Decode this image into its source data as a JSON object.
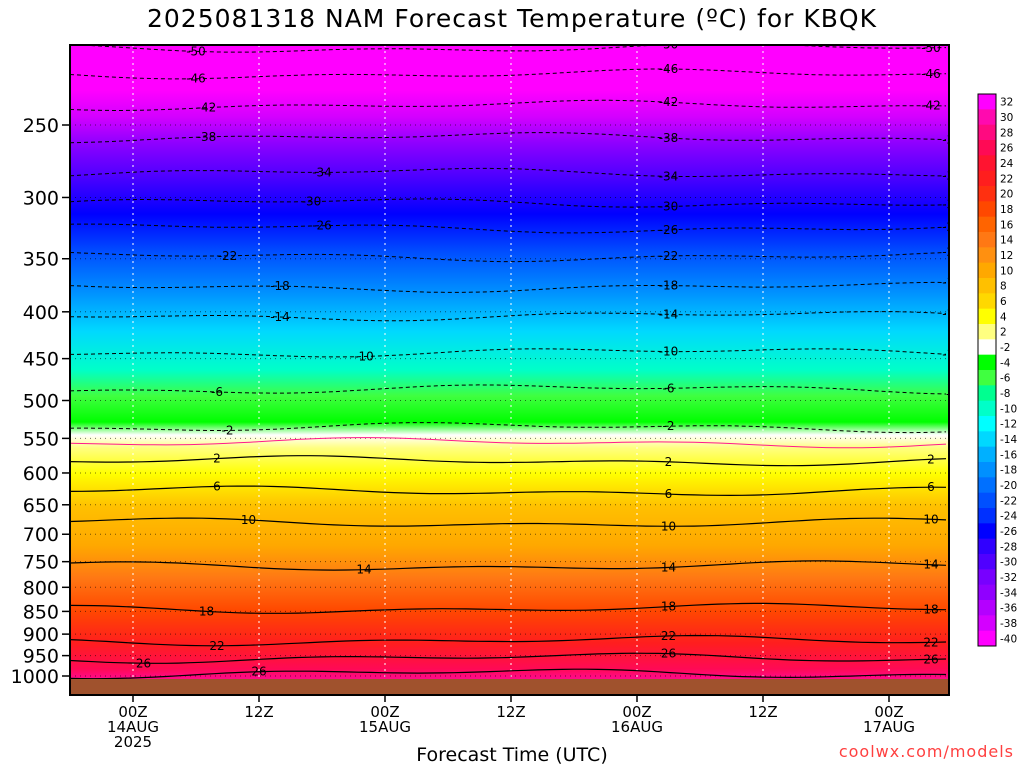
{
  "title": "2025081318 NAM Forecast Temperature (ºC) for KBQK",
  "watermark": "coolwx.com/models",
  "chart_data": {
    "type": "heatmap",
    "title": "2025081318 NAM Forecast Temperature (ºC) for KBQK",
    "xlabel": "Forecast Time (UTC)",
    "ylabel": "",
    "y_scale": "log-pressure",
    "y_ticks": [
      250,
      300,
      350,
      400,
      450,
      500,
      550,
      600,
      650,
      700,
      750,
      800,
      850,
      900,
      950,
      1000
    ],
    "ylim": [
      200,
      1000
    ],
    "x_ticks": [
      {
        "hour": 0,
        "lines": [
          "00Z",
          "14AUG",
          "2025"
        ]
      },
      {
        "hour": 12,
        "lines": [
          "12Z"
        ]
      },
      {
        "hour": 24,
        "lines": [
          "00Z",
          "15AUG"
        ]
      },
      {
        "hour": 36,
        "lines": [
          "12Z"
        ]
      },
      {
        "hour": 48,
        "lines": [
          "00Z",
          "16AUG"
        ]
      },
      {
        "hour": 60,
        "lines": [
          "12Z"
        ]
      },
      {
        "hour": 72,
        "lines": [
          "00Z",
          "17AUG"
        ]
      }
    ],
    "colorbar": {
      "labels": [
        32,
        30,
        28,
        26,
        24,
        22,
        20,
        18,
        16,
        14,
        12,
        10,
        8,
        6,
        4,
        2,
        -2,
        -4,
        -6,
        -8,
        -10,
        -12,
        -14,
        -16,
        -18,
        -20,
        -22,
        -24,
        -26,
        -28,
        -30,
        -32,
        -34,
        -36,
        -38,
        -40
      ],
      "colors": [
        "#ff00ff",
        "#ff0aaf",
        "#ff0a80",
        "#ff0a55",
        "#ff1430",
        "#ff1e1e",
        "#ff3010",
        "#ff4800",
        "#ff6400",
        "#ff7814",
        "#ff9010",
        "#ffa800",
        "#ffc000",
        "#ffd800",
        "#ffff00",
        "#ffff80",
        "#ffffff",
        "#00ff00",
        "#40ff40",
        "#00ff90",
        "#00ffc8",
        "#00ffff",
        "#00d8ff",
        "#00b0ff",
        "#0090ff",
        "#0070ff",
        "#0050ff",
        "#0030ff",
        "#0000ff",
        "#3000ff",
        "#5000ff",
        "#7800ff",
        "#9000ff",
        "#b400ff",
        "#d400ff",
        "#ff00ff"
      ]
    },
    "contours": [
      {
        "value": -50,
        "style": "dashed",
        "p": 206,
        "labels_at_hours": [
          6,
          51,
          76
        ]
      },
      {
        "value": -46,
        "style": "dashed",
        "p": 220,
        "labels_at_hours": [
          6,
          51,
          76
        ]
      },
      {
        "value": -42,
        "style": "dashed",
        "p": 238,
        "labels_at_hours": [
          7,
          51,
          76
        ]
      },
      {
        "value": -38,
        "style": "dashed",
        "p": 258,
        "labels_at_hours": [
          7,
          51,
          78
        ]
      },
      {
        "value": -34,
        "style": "dashed",
        "p": 282,
        "labels_at_hours": [
          18,
          51,
          78
        ]
      },
      {
        "value": -30,
        "style": "dashed",
        "p": 304,
        "labels_at_hours": [
          17,
          51,
          78
        ]
      },
      {
        "value": -26,
        "style": "dashed",
        "p": 324,
        "labels_at_hours": [
          18,
          51,
          78
        ]
      },
      {
        "value": -22,
        "style": "dashed",
        "p": 348,
        "labels_at_hours": [
          9,
          51,
          78
        ]
      },
      {
        "value": -18,
        "style": "dashed",
        "p": 376,
        "labels_at_hours": [
          14,
          51,
          78
        ]
      },
      {
        "value": -14,
        "style": "dashed",
        "p": 404,
        "labels_at_hours": [
          14,
          51,
          78
        ]
      },
      {
        "value": -10,
        "style": "dashed",
        "p": 443,
        "labels_at_hours": [
          22,
          51,
          78
        ]
      },
      {
        "value": -6,
        "style": "dashed",
        "p": 486,
        "labels_at_hours": [
          8,
          51,
          78
        ]
      },
      {
        "value": -2,
        "style": "dashed",
        "p": 535,
        "labels_at_hours": [
          9,
          51,
          79
        ]
      },
      {
        "value": 0,
        "style": "magenta",
        "p": 556,
        "labels_at_hours": []
      },
      {
        "value": 2,
        "style": "solid",
        "p": 582,
        "labels_at_hours": [
          8,
          51,
          76
        ]
      },
      {
        "value": 6,
        "style": "solid",
        "p": 628,
        "labels_at_hours": [
          8,
          51,
          76
        ]
      },
      {
        "value": 10,
        "style": "solid",
        "p": 680,
        "labels_at_hours": [
          11,
          51,
          76
        ]
      },
      {
        "value": 14,
        "style": "solid",
        "p": 758,
        "labels_at_hours": [
          22,
          51,
          76
        ]
      },
      {
        "value": 18,
        "style": "solid",
        "p": 844,
        "labels_at_hours": [
          7,
          51,
          76
        ]
      },
      {
        "value": 22,
        "style": "solid",
        "p": 915,
        "labels_at_hours": [
          8,
          51,
          76
        ]
      },
      {
        "value": 26,
        "style": "solid",
        "p": 956,
        "labels_at_hours": [
          1,
          51,
          76
        ]
      },
      {
        "value": 26,
        "style": "solid",
        "p": 994,
        "labels_at_hours": [
          12
        ]
      }
    ],
    "grid": true
  }
}
